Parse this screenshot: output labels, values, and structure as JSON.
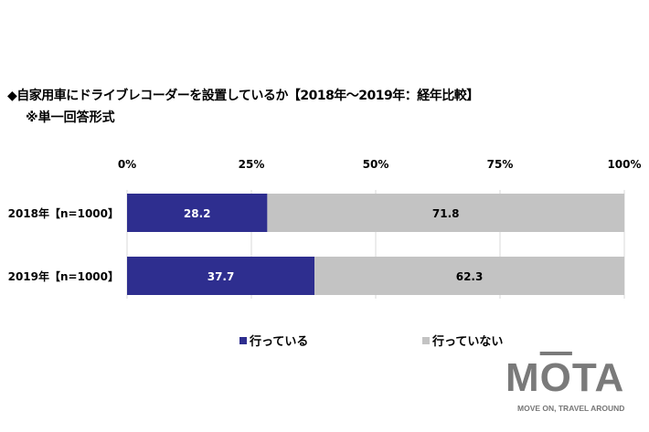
{
  "chart_data": {
    "type": "bar",
    "orientation": "horizontal",
    "stacked": true,
    "title": "◆自家用車にドライブレコーダーを設置しているか【2018年～2019年：経年比較】",
    "subtitle": "※単一回答形式",
    "categories": [
      "2018年【n=1000】",
      "2019年【n=1000】"
    ],
    "series": [
      {
        "name": "行っている",
        "values": [
          28.2,
          37.7
        ],
        "color": "#2e2e8f"
      },
      {
        "name": "行っていない",
        "values": [
          71.8,
          62.3
        ],
        "color": "#c3c3c3"
      }
    ],
    "xlim": [
      0,
      100
    ],
    "xticks": [
      "0%",
      "25%",
      "50%",
      "75%",
      "100%"
    ],
    "grid": true,
    "legend": "bottom"
  },
  "logo": {
    "text": "MOTA",
    "tagline": "MOVE ON, TRAVEL AROUND"
  }
}
